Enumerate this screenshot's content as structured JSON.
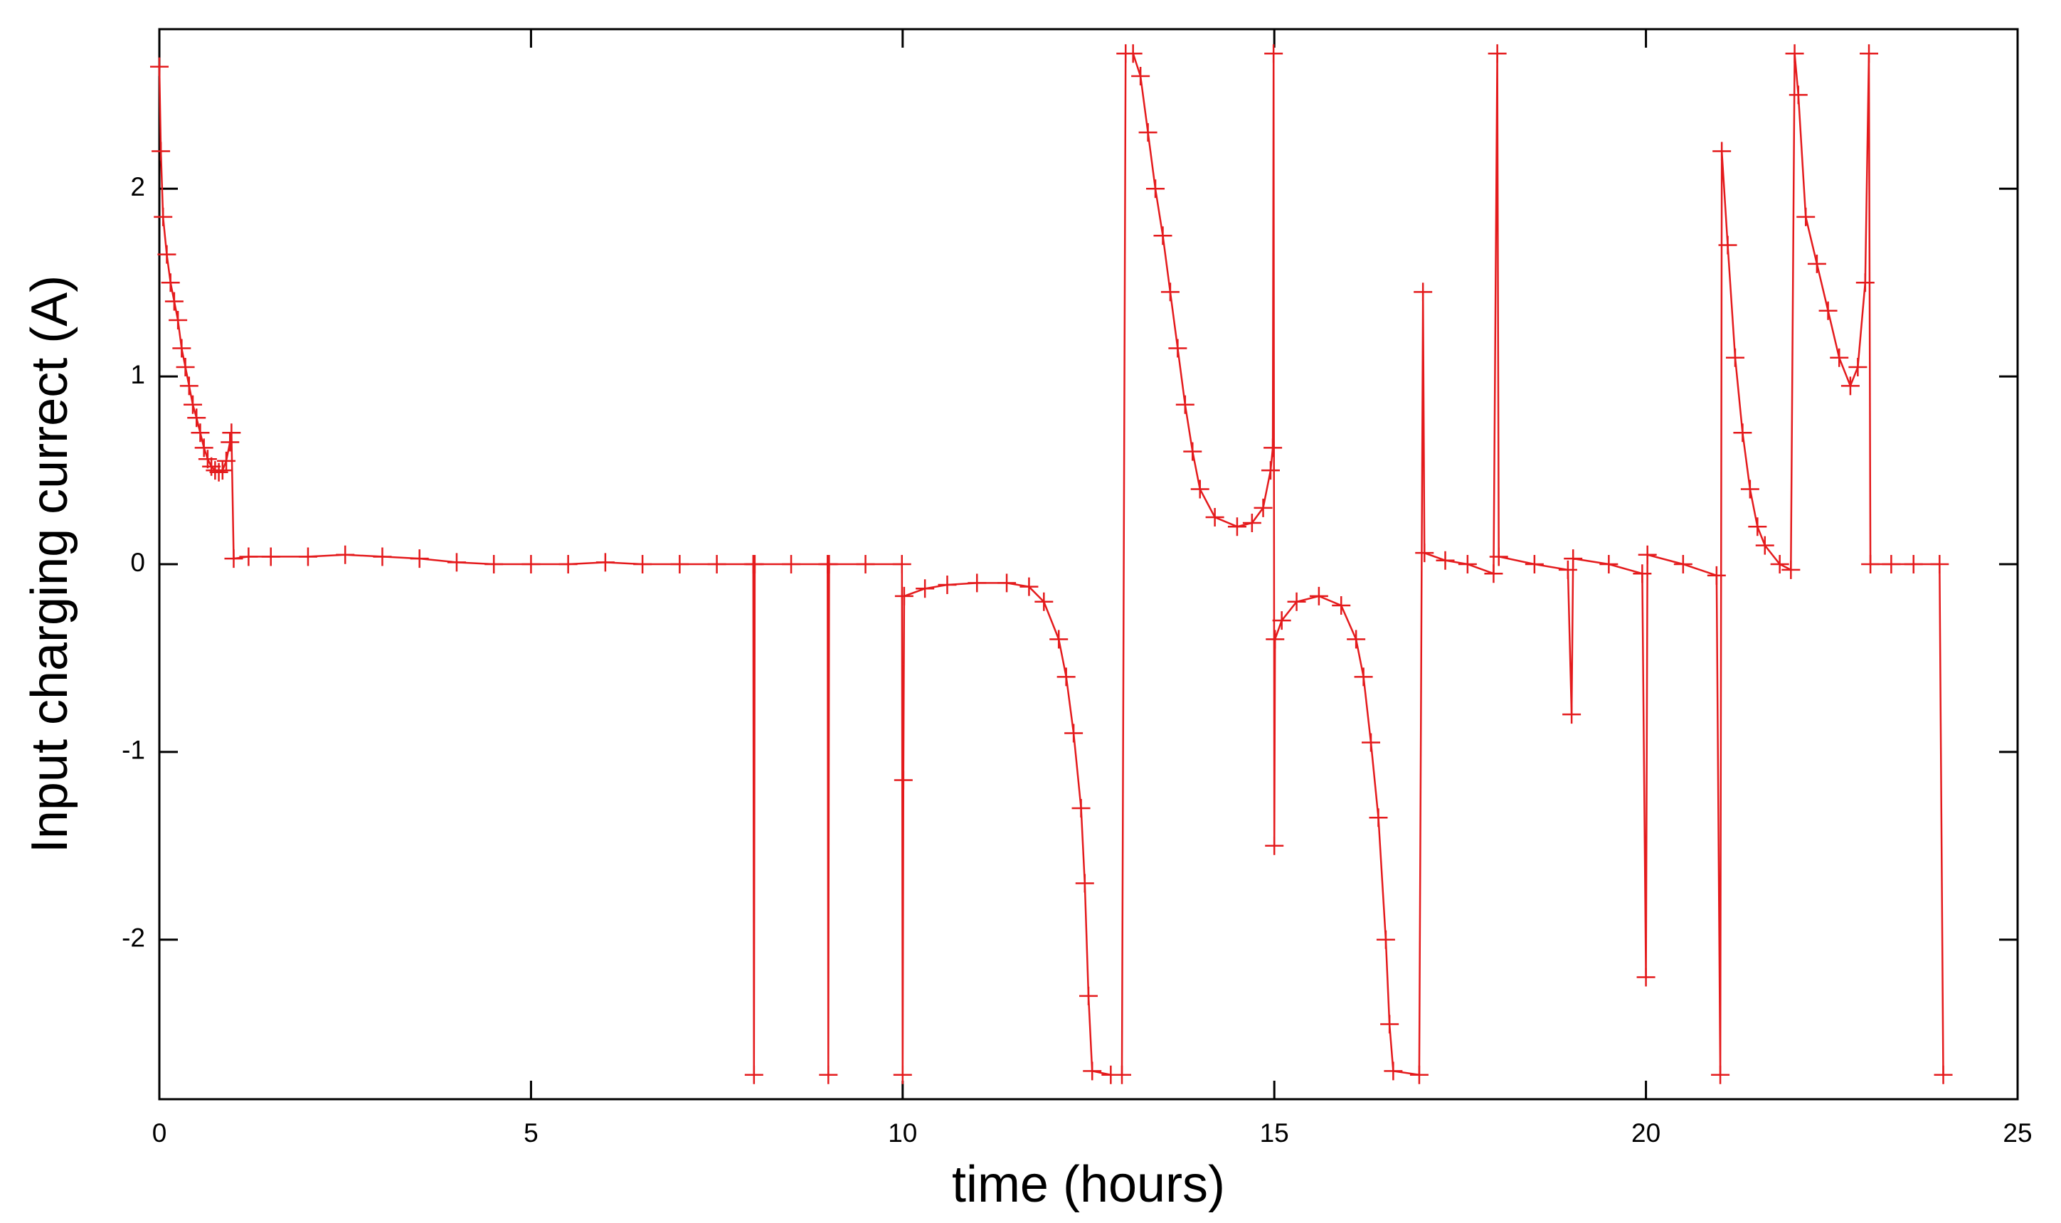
{
  "chart_data": {
    "type": "line",
    "x_label": "time (hours)",
    "y_label": "Input charging currect (A)",
    "color": "#e41a1c",
    "marker": "plus",
    "grid": false,
    "xlim": [
      0,
      25
    ],
    "xticks": [
      0,
      5,
      10,
      15,
      20,
      25
    ],
    "ylim": [
      -2.85,
      2.85
    ],
    "yticks": [
      -2,
      -1,
      0,
      1,
      2
    ],
    "x": [
      0,
      0.02,
      0.05,
      0.1,
      0.15,
      0.2,
      0.25,
      0.3,
      0.35,
      0.4,
      0.45,
      0.5,
      0.55,
      0.6,
      0.65,
      0.7,
      0.75,
      0.8,
      0.85,
      0.9,
      0.95,
      0.97,
      1.0,
      1.2,
      1.5,
      2,
      2.5,
      3,
      3.5,
      4,
      4.5,
      5,
      5.5,
      6,
      6.5,
      7,
      7.5,
      7.99,
      8.0,
      8.01,
      8.5,
      8.99,
      9.0,
      9.01,
      9.5,
      9.99,
      10.0,
      10.01,
      10.02,
      10.3,
      10.6,
      11,
      11.4,
      11.7,
      11.9,
      12.1,
      12.2,
      12.3,
      12.4,
      12.45,
      12.5,
      12.55,
      12.8,
      12.95,
      13.0,
      13.1,
      13.2,
      13.3,
      13.4,
      13.5,
      13.6,
      13.7,
      13.8,
      13.9,
      14.0,
      14.2,
      14.5,
      14.7,
      14.85,
      14.95,
      14.98,
      14.99,
      15.0,
      15.01,
      15.1,
      15.3,
      15.6,
      15.9,
      16.1,
      16.2,
      16.3,
      16.4,
      16.5,
      16.55,
      16.6,
      16.95,
      17.0,
      17.02,
      17.3,
      17.6,
      17.95,
      18.0,
      18.02,
      18.5,
      18.95,
      19.0,
      19.02,
      19.5,
      19.95,
      20.0,
      20.02,
      20.5,
      20.95,
      21.0,
      21.02,
      21.1,
      21.2,
      21.3,
      21.4,
      21.5,
      21.6,
      21.8,
      21.95,
      22.0,
      22.05,
      22.15,
      22.3,
      22.45,
      22.6,
      22.75,
      22.85,
      22.95,
      23.0,
      23.02,
      23.3,
      23.6,
      23.95,
      24.0
    ],
    "values": [
      2.65,
      2.2,
      1.85,
      1.65,
      1.5,
      1.4,
      1.3,
      1.15,
      1.05,
      0.95,
      0.85,
      0.78,
      0.7,
      0.62,
      0.56,
      0.52,
      0.5,
      0.49,
      0.5,
      0.55,
      0.65,
      0.7,
      0.03,
      0.04,
      0.04,
      0.04,
      0.05,
      0.04,
      0.03,
      0.01,
      0.0,
      0.0,
      0.0,
      0.01,
      0.0,
      0.0,
      0.0,
      0.0,
      -2.72,
      0.0,
      0.0,
      0.0,
      -2.72,
      0.0,
      0.0,
      0.0,
      -2.72,
      -1.15,
      -0.17,
      -0.13,
      -0.11,
      -0.1,
      -0.1,
      -0.12,
      -0.2,
      -0.4,
      -0.6,
      -0.9,
      -1.3,
      -1.7,
      -2.3,
      -2.7,
      -2.72,
      -2.72,
      2.72,
      2.72,
      2.6,
      2.3,
      2.0,
      1.75,
      1.45,
      1.15,
      0.85,
      0.6,
      0.4,
      0.25,
      0.2,
      0.22,
      0.3,
      0.5,
      0.62,
      2.72,
      -1.5,
      -0.4,
      -0.3,
      -0.2,
      -0.17,
      -0.22,
      -0.4,
      -0.6,
      -0.95,
      -1.35,
      -2.0,
      -2.45,
      -2.7,
      -2.72,
      1.45,
      0.06,
      0.02,
      0.0,
      -0.05,
      2.72,
      0.04,
      0.0,
      -0.03,
      -0.8,
      0.03,
      0.0,
      -0.05,
      -2.2,
      0.05,
      0.0,
      -0.06,
      -2.72,
      2.2,
      1.7,
      1.1,
      0.7,
      0.4,
      0.2,
      0.1,
      0.0,
      -0.03,
      2.72,
      2.5,
      1.85,
      1.6,
      1.35,
      1.1,
      0.95,
      1.05,
      1.5,
      2.72,
      0.0,
      0.0,
      0.0,
      0.0,
      -2.72
    ]
  }
}
